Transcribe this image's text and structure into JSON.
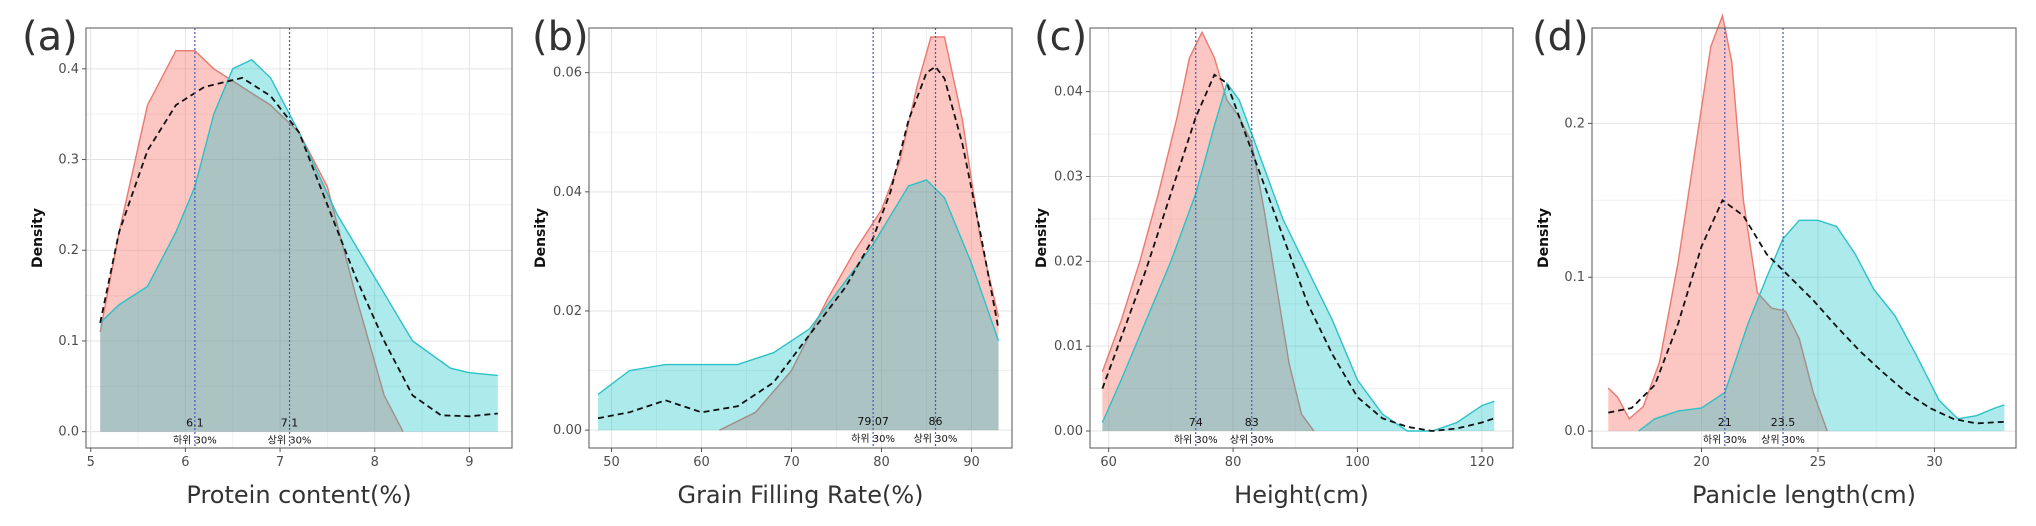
{
  "chart_data": [
    {
      "type": "area",
      "panel": "(a)",
      "xlabel": "Protein content(%)",
      "ylabel": "Density",
      "xlim": [
        4.95,
        9.45
      ],
      "ylim": [
        -0.018,
        0.445
      ],
      "xticks": [
        5,
        6,
        7,
        8,
        9
      ],
      "yticks": [
        0.0,
        0.1,
        0.2,
        0.3,
        0.4
      ],
      "ytick_labels": [
        "0.0",
        "0.1",
        "0.2",
        "0.3",
        "0.4"
      ],
      "colors": {
        "lower": "#f8766d",
        "upper": "#00bfc4",
        "overall": "#000000",
        "vline": "#4a56c0"
      },
      "series": [
        {
          "x": [
            5.1,
            5.3,
            5.6,
            5.9,
            6.1,
            6.3,
            6.6,
            6.9,
            7.2,
            7.5,
            7.8,
            8.1,
            8.3
          ],
          "y": [
            0.11,
            0.22,
            0.36,
            0.42,
            0.42,
            0.4,
            0.38,
            0.36,
            0.33,
            0.27,
            0.15,
            0.04,
            0.0
          ]
        },
        {
          "x": [
            5.1,
            5.3,
            5.6,
            5.9,
            6.1,
            6.3,
            6.5,
            6.7,
            6.9,
            7.2,
            7.6,
            8.0,
            8.4,
            8.8,
            9.0,
            9.3
          ],
          "y": [
            0.12,
            0.14,
            0.16,
            0.22,
            0.27,
            0.35,
            0.4,
            0.41,
            0.39,
            0.33,
            0.24,
            0.17,
            0.1,
            0.07,
            0.065,
            0.062
          ]
        },
        {
          "x": [
            5.1,
            5.3,
            5.6,
            5.9,
            6.2,
            6.6,
            6.9,
            7.2,
            7.5,
            7.8,
            8.1,
            8.4,
            8.7,
            9.0,
            9.3
          ],
          "y": [
            0.12,
            0.22,
            0.31,
            0.36,
            0.38,
            0.39,
            0.37,
            0.33,
            0.25,
            0.17,
            0.1,
            0.04,
            0.018,
            0.017,
            0.02
          ]
        }
      ],
      "vlines": [
        {
          "x": 6.1,
          "value_label": "6.1",
          "group_label": "하위 30%"
        },
        {
          "x": 7.1,
          "value_label": "7.1",
          "group_label": "상위 30%"
        }
      ]
    },
    {
      "type": "area",
      "panel": "(b)",
      "xlabel": "Grain Filling Rate(%)",
      "ylabel": "Density",
      "xlim": [
        47.5,
        94.5
      ],
      "ylim": [
        -0.003,
        0.0675
      ],
      "xticks": [
        50,
        60,
        70,
        80,
        90
      ],
      "yticks": [
        0.0,
        0.02,
        0.04,
        0.06
      ],
      "ytick_labels": [
        "0.00",
        "0.02",
        "0.04",
        "0.06"
      ],
      "colors": {
        "lower": "#f8766d",
        "upper": "#00bfc4",
        "overall": "#000000",
        "vline": "#4a56c0"
      },
      "series": [
        {
          "x": [
            62,
            66,
            70,
            74,
            77,
            80,
            82,
            84,
            85.5,
            87,
            89,
            91,
            93
          ],
          "y": [
            0.0,
            0.003,
            0.01,
            0.022,
            0.03,
            0.037,
            0.045,
            0.058,
            0.066,
            0.066,
            0.052,
            0.032,
            0.019
          ]
        },
        {
          "x": [
            48.5,
            52,
            56,
            60,
            64,
            68,
            72,
            76,
            79,
            81,
            83,
            85,
            87,
            90,
            93
          ],
          "y": [
            0.006,
            0.01,
            0.011,
            0.011,
            0.011,
            0.013,
            0.017,
            0.025,
            0.031,
            0.036,
            0.041,
            0.042,
            0.039,
            0.028,
            0.015
          ]
        },
        {
          "x": [
            48.5,
            52,
            56,
            60,
            64,
            68,
            72,
            76,
            79,
            81,
            83,
            85,
            86,
            87,
            89,
            91,
            93
          ],
          "y": [
            0.002,
            0.003,
            0.005,
            0.003,
            0.004,
            0.008,
            0.016,
            0.024,
            0.032,
            0.04,
            0.052,
            0.06,
            0.061,
            0.059,
            0.048,
            0.033,
            0.017
          ]
        }
      ],
      "vlines": [
        {
          "x": 79.07,
          "value_label": "79.07",
          "group_label": "하위 30%"
        },
        {
          "x": 86,
          "value_label": "86",
          "group_label": "상위 30%"
        }
      ]
    },
    {
      "type": "area",
      "panel": "(c)",
      "xlabel": "Height(cm)",
      "ylabel": "Density",
      "xlim": [
        57,
        125
      ],
      "ylim": [
        -0.002,
        0.0475
      ],
      "xticks": [
        60,
        80,
        100,
        120
      ],
      "yticks": [
        0.0,
        0.01,
        0.02,
        0.03,
        0.04
      ],
      "ytick_labels": [
        "0.00",
        "0.01",
        "0.02",
        "0.03",
        "0.04"
      ],
      "colors": {
        "lower": "#f8766d",
        "upper": "#00bfc4",
        "overall": "#000000",
        "vline": "#4a56c0"
      },
      "series": [
        {
          "x": [
            59,
            62,
            65,
            68,
            71,
            73,
            75,
            77,
            79,
            81,
            83,
            85,
            87,
            89,
            91,
            93
          ],
          "y": [
            0.007,
            0.013,
            0.02,
            0.028,
            0.037,
            0.044,
            0.047,
            0.044,
            0.039,
            0.037,
            0.034,
            0.026,
            0.017,
            0.008,
            0.002,
            0.0
          ]
        },
        {
          "x": [
            59,
            62,
            66,
            70,
            74,
            77,
            79,
            81,
            84,
            88,
            92,
            96,
            100,
            104,
            108,
            112,
            116,
            120,
            122
          ],
          "y": [
            0.001,
            0.006,
            0.013,
            0.02,
            0.028,
            0.036,
            0.041,
            0.039,
            0.033,
            0.025,
            0.019,
            0.013,
            0.006,
            0.002,
            0.0,
            0.0,
            0.001,
            0.003,
            0.0035
          ]
        },
        {
          "x": [
            59,
            62,
            66,
            70,
            74,
            77,
            79,
            81,
            84,
            88,
            92,
            96,
            100,
            104,
            108,
            112,
            116,
            120,
            122
          ],
          "y": [
            0.005,
            0.011,
            0.019,
            0.028,
            0.037,
            0.042,
            0.041,
            0.037,
            0.031,
            0.023,
            0.015,
            0.009,
            0.004,
            0.0015,
            0.0005,
            0.0,
            0.0003,
            0.001,
            0.0015
          ]
        }
      ],
      "vlines": [
        {
          "x": 74,
          "value_label": "74",
          "group_label": "하위 30%"
        },
        {
          "x": 83,
          "value_label": "83",
          "group_label": "상위 30%"
        }
      ]
    },
    {
      "type": "area",
      "panel": "(d)",
      "xlabel": "Panicle length(cm)",
      "ylabel": "Density",
      "xlim": [
        15.3,
        33.5
      ],
      "ylim": [
        -0.011,
        0.262
      ],
      "xticks": [
        20,
        25,
        30
      ],
      "yticks": [
        0.0,
        0.1,
        0.2
      ],
      "ytick_labels": [
        "0.0",
        "0.1",
        "0.2"
      ],
      "colors": {
        "lower": "#f8766d",
        "upper": "#00bfc4",
        "overall": "#000000",
        "vline": "#4a56c0"
      },
      "series": [
        {
          "x": [
            16,
            16.4,
            16.9,
            17.5,
            18.2,
            19,
            19.8,
            20.4,
            20.9,
            21.3,
            21.8,
            22.4,
            23,
            23.6,
            24.2,
            24.8,
            25.4
          ],
          "y": [
            0.028,
            0.022,
            0.008,
            0.016,
            0.045,
            0.11,
            0.19,
            0.25,
            0.27,
            0.24,
            0.15,
            0.09,
            0.08,
            0.078,
            0.06,
            0.025,
            0.0
          ]
        },
        {
          "x": [
            17.3,
            18,
            19,
            20,
            21,
            22,
            22.8,
            23.5,
            24.2,
            25,
            25.8,
            26.6,
            27.4,
            28.3,
            29.2,
            30.2,
            31,
            31.8,
            32.6,
            33
          ],
          "y": [
            0.0,
            0.008,
            0.013,
            0.015,
            0.025,
            0.07,
            0.1,
            0.125,
            0.137,
            0.137,
            0.133,
            0.115,
            0.092,
            0.075,
            0.05,
            0.02,
            0.008,
            0.01,
            0.015,
            0.017
          ]
        },
        {
          "x": [
            16,
            17,
            18,
            19,
            20,
            20.9,
            21.8,
            22.8,
            23.8,
            24.8,
            25.8,
            26.8,
            27.8,
            28.8,
            29.8,
            30.8,
            31.8,
            33
          ],
          "y": [
            0.012,
            0.015,
            0.03,
            0.07,
            0.12,
            0.15,
            0.14,
            0.115,
            0.1,
            0.085,
            0.068,
            0.052,
            0.038,
            0.025,
            0.015,
            0.008,
            0.005,
            0.006
          ]
        }
      ],
      "vlines": [
        {
          "x": 21,
          "value_label": "21",
          "group_label": "하위 30%"
        },
        {
          "x": 23.5,
          "value_label": "23.5",
          "group_label": "상위 30%"
        }
      ]
    }
  ]
}
